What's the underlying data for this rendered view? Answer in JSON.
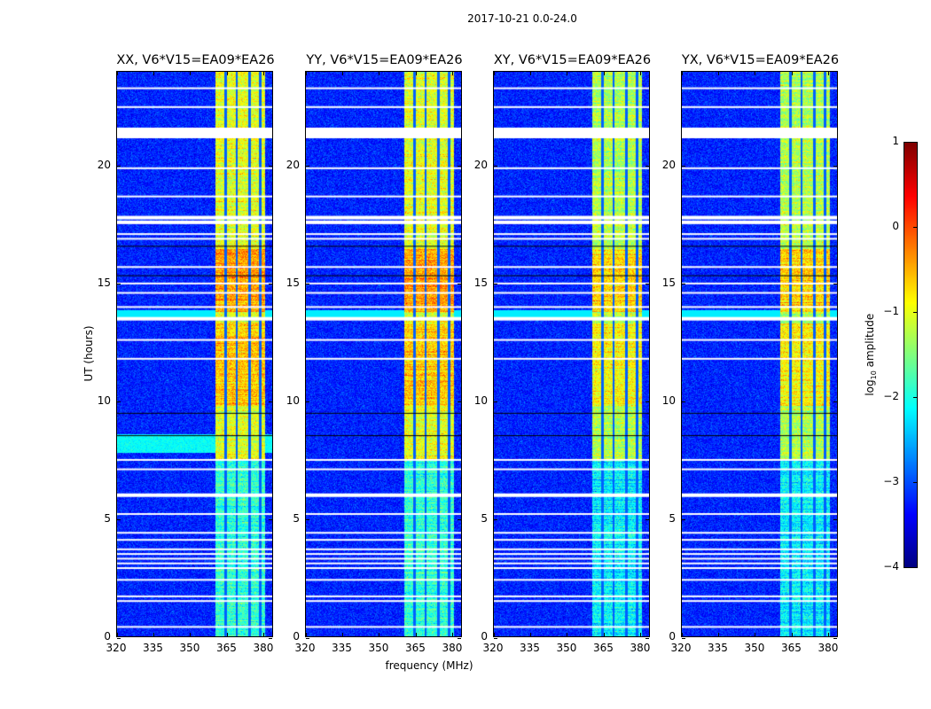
{
  "chart_data": {
    "type": "heatmap",
    "title": "2017-10-21 0.0-24.0",
    "xlabel": "frequency (MHz)",
    "ylabel": "UT (hours)",
    "xlim": [
      320,
      384
    ],
    "ylim": [
      0,
      24
    ],
    "xticks": [
      320,
      335,
      350,
      365,
      380
    ],
    "yticks": [
      0,
      5,
      10,
      15,
      20
    ],
    "panels": [
      {
        "title": "XX, V6*V15=EA09*EA26"
      },
      {
        "title": "YY, V6*V15=EA09*EA26"
      },
      {
        "title": "XY, V6*V15=EA09*EA26"
      },
      {
        "title": "YX, V6*V15=EA09*EA26"
      }
    ],
    "colorbar": {
      "label_main": "log",
      "label_sub": "10",
      "label_rest": " amplitude",
      "range": [
        -4,
        1
      ],
      "ticks": [
        1,
        0,
        -1,
        -2,
        -3,
        -4
      ],
      "tick_labels": [
        "1",
        "0",
        "−1",
        "−2",
        "−3",
        "−4"
      ],
      "colormap": "jet"
    },
    "background_level": -3.2,
    "rfi_band_mhz": [
      360.5,
      381
    ],
    "rfi_band_level": -1.0,
    "rfi_band_gaps_mhz": [
      364.5,
      369.2,
      374.4,
      379
    ],
    "flagged_hours": [
      0.4,
      1.5,
      1.7,
      2.4,
      2.9,
      3.1,
      3.3,
      3.5,
      3.7,
      4.1,
      4.4,
      5.2,
      6.0,
      7.1,
      7.5,
      11.8,
      12.6,
      13.5,
      14.0,
      14.6,
      15.0,
      15.7,
      16.9,
      17.1,
      17.6,
      17.8,
      18.7,
      19.9,
      21.4,
      22.5,
      23.3
    ],
    "dark_rows_hours": [
      8.55,
      9.5,
      15.35,
      16.6
    ]
  }
}
